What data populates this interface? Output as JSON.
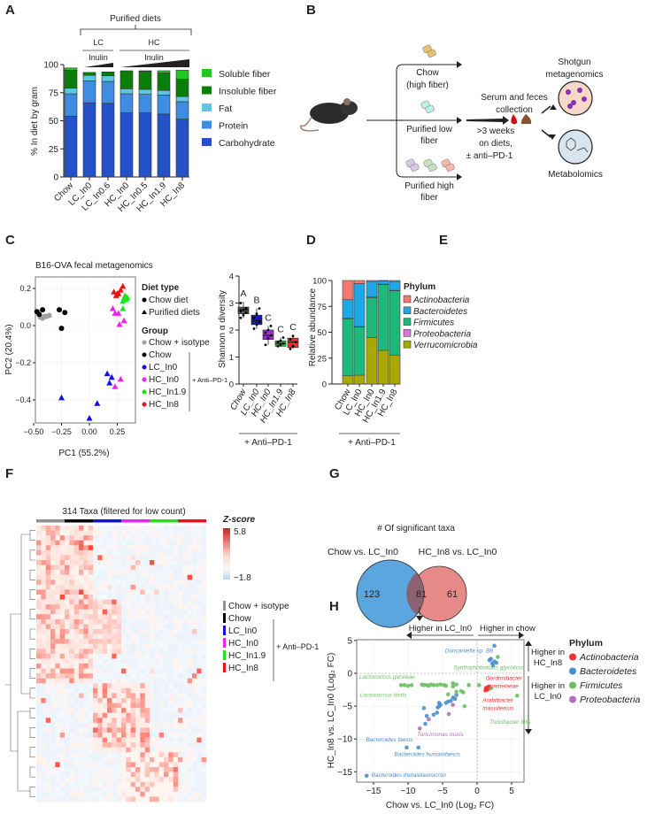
{
  "panels": {
    "A": "A",
    "B": "B",
    "C": "C",
    "D": "D",
    "E": "E",
    "F": "F",
    "G": "G",
    "H": "H"
  },
  "colors": {
    "carb": "#2450c8",
    "protein": "#3f8ce0",
    "fat": "#5fc8e0",
    "insoluble": "#0a7d0a",
    "soluble": "#1ec81e"
  },
  "chart_data": [
    {
      "id": "A",
      "type": "bar",
      "stacked": true,
      "categories": [
        "Chow",
        "LC_In0",
        "LC_In0.6",
        "HC_In0",
        "HC_In0.5",
        "HC_In1.9",
        "HC_In8"
      ],
      "series": [
        {
          "name": "Carbohydrate",
          "color": "#2450c8",
          "values": [
            54,
            66,
            65.5,
            57,
            57,
            56,
            51.5
          ]
        },
        {
          "name": "Protein",
          "color": "#3f8ce0",
          "values": [
            20,
            19.5,
            19.5,
            17,
            16.5,
            17,
            15.5
          ]
        },
        {
          "name": "Fat",
          "color": "#5fc8e0",
          "values": [
            5,
            5,
            5,
            4.5,
            4.5,
            4,
            4.5
          ]
        },
        {
          "name": "Insoluble fiber",
          "color": "#0a7d0a",
          "values": [
            16,
            2.5,
            3.5,
            16,
            16,
            15.5,
            15.5
          ]
        },
        {
          "name": "Soluble fiber",
          "color": "#1ec81e",
          "values": [
            2,
            0,
            0,
            0,
            0.5,
            2,
            8
          ]
        }
      ],
      "legend_order": [
        "Soluble fiber",
        "Insoluble fiber",
        "Fat",
        "Protein",
        "Carbohydrate"
      ],
      "ylabel": "% In diet by gram",
      "ylim": [
        0,
        100
      ],
      "yticks": [
        "0",
        "25",
        "50",
        "75",
        "100"
      ],
      "header": {
        "title": "Purified diets",
        "lc": "LC",
        "hc": "HC",
        "inulin": "Inulin"
      }
    },
    {
      "id": "C",
      "type": "scatter",
      "title": "B16-OVA fecal metagenomics",
      "xlabel": "PC1 (55.2%)",
      "ylabel": "PC2 (20.4%)",
      "xticks": [
        -0.5,
        -0.25,
        0,
        0.25
      ],
      "xtick_labels": [
        "−0.50",
        "−0.25",
        "0.00",
        "0.25"
      ],
      "yticks": [
        0.2,
        0,
        -0.2,
        -0.4
      ],
      "ytick_labels": [
        "0.2",
        "0.0",
        "−0.2",
        "−0.4"
      ],
      "xlim": [
        -0.5,
        0.4
      ],
      "ylim": [
        -0.52,
        0.24
      ],
      "legend": {
        "diet_title": "Diet type",
        "diet_items": [
          "Chow diet",
          "Purified diets"
        ],
        "group_title": "Group",
        "anti": "+ Anti–PD-1"
      },
      "series": [
        {
          "name": "Chow + isotype",
          "color": "#a0a0a0",
          "marker": "circle",
          "points": [
            [
              -0.44,
              0.045
            ],
            [
              -0.42,
              0.04
            ],
            [
              -0.4,
              0.05
            ],
            [
              -0.38,
              0.05
            ],
            [
              -0.36,
              0.055
            ],
            [
              -0.41,
              0.045
            ]
          ]
        },
        {
          "name": "Chow",
          "color": "#000000",
          "marker": "circle",
          "points": [
            [
              -0.47,
              0.075
            ],
            [
              -0.45,
              0.06
            ],
            [
              -0.42,
              0.085
            ],
            [
              -0.27,
              0.085
            ],
            [
              -0.22,
              0.07
            ],
            [
              -0.25,
              -0.015
            ]
          ]
        },
        {
          "name": "LC_In0",
          "color": "#1010e0",
          "marker": "triangle",
          "points": [
            [
              0.16,
              -0.26
            ],
            [
              0.2,
              -0.28
            ],
            [
              0.18,
              -0.31
            ],
            [
              -0.25,
              -0.39
            ],
            [
              0.07,
              -0.42
            ],
            [
              0.0,
              -0.5
            ]
          ]
        },
        {
          "name": "HC_In0",
          "color": "#f020f0",
          "marker": "triangle",
          "points": [
            [
              0.21,
              0.09
            ],
            [
              0.23,
              0.065
            ],
            [
              0.26,
              0.065
            ],
            [
              0.31,
              0.025
            ],
            [
              0.27,
              0.005
            ],
            [
              0.28,
              -0.29
            ],
            [
              0.23,
              -0.33
            ]
          ]
        },
        {
          "name": "HC_In1.9",
          "color": "#20e020",
          "marker": "triangle",
          "points": [
            [
              0.3,
              0.13
            ],
            [
              0.32,
              0.16
            ],
            [
              0.34,
              0.15
            ],
            [
              0.31,
              0.145
            ],
            [
              0.3,
              0.09
            ],
            [
              0.33,
              0.14
            ]
          ]
        },
        {
          "name": "HC_In8",
          "color": "#f01010",
          "marker": "triangle",
          "points": [
            [
              0.22,
              0.18
            ],
            [
              0.24,
              0.16
            ],
            [
              0.25,
              0.17
            ],
            [
              0.28,
              0.19
            ],
            [
              0.3,
              0.21
            ],
            [
              0.26,
              0.17
            ]
          ]
        }
      ]
    },
    {
      "id": "D",
      "type": "box",
      "ylabel": "Shannon α diversity",
      "ylim": [
        0,
        4
      ],
      "yticks": [
        "0",
        "1",
        "2",
        "3",
        "4"
      ],
      "categories": [
        "Chow",
        "LC_In0",
        "HC_In0",
        "HC_In1.9",
        "HC_In8"
      ],
      "colors": [
        "#555555",
        "#1a1aa8",
        "#9b30d0",
        "#3cb34a",
        "#e53030"
      ],
      "letters": [
        "A",
        "B",
        "C",
        "C",
        "C"
      ],
      "boxes": [
        {
          "min": 2.45,
          "q1": 2.6,
          "median": 2.75,
          "q3": 2.85,
          "max": 3.05,
          "points": [
            2.45,
            2.55,
            2.65,
            2.7,
            2.75,
            2.8,
            3.0
          ]
        },
        {
          "min": 2.05,
          "q1": 2.2,
          "median": 2.35,
          "q3": 2.55,
          "max": 2.8,
          "points": [
            2.05,
            2.2,
            2.3,
            2.45,
            2.6,
            2.8
          ]
        },
        {
          "min": 1.45,
          "q1": 1.65,
          "median": 1.8,
          "q3": 2.0,
          "max": 2.15,
          "points": [
            1.45,
            1.7,
            1.8,
            1.9,
            2.0,
            2.15
          ]
        },
        {
          "min": 1.38,
          "q1": 1.4,
          "median": 1.5,
          "q3": 1.6,
          "max": 1.72,
          "points": [
            1.4,
            1.45,
            1.5,
            1.55,
            1.6,
            1.72
          ]
        },
        {
          "min": 1.3,
          "q1": 1.35,
          "median": 1.55,
          "q3": 1.7,
          "max": 1.8,
          "points": [
            1.3,
            1.4,
            1.55,
            1.65,
            1.78
          ]
        }
      ],
      "group_label": "+ Anti–PD-1"
    },
    {
      "id": "E",
      "type": "bar",
      "stacked": true,
      "ylabel": "Relative abundance",
      "ylim": [
        0,
        100
      ],
      "yticks": [
        "0",
        "25",
        "50",
        "75",
        "100"
      ],
      "categories": [
        "Chow",
        "LC_In0",
        "HC_In0",
        "HC_In1.9",
        "HC_In8"
      ],
      "legend_title": "Phylum",
      "series": [
        {
          "name": "Verrucomicrobia",
          "color": "#a8a800",
          "values": [
            8,
            8.5,
            45,
            32.5,
            28
          ]
        },
        {
          "name": "Firmicutes",
          "color": "#1db87a",
          "values": [
            55,
            46.5,
            38.5,
            63.5,
            62
          ]
        },
        {
          "name": "Proteobacteria",
          "color": "#e070e0",
          "values": [
            0.5,
            0.5,
            0.5,
            0.5,
            0.5
          ]
        },
        {
          "name": "Bacteroidetes",
          "color": "#1ea8e8",
          "values": [
            18,
            41.5,
            15,
            3,
            8.5
          ]
        },
        {
          "name": "Actinobacteria",
          "color": "#f07a70",
          "values": [
            18.5,
            3,
            1,
            0.5,
            1
          ]
        }
      ],
      "legend_order": [
        "Actinobacteria",
        "Bacteroidetes",
        "Firmicutes",
        "Proteobacteria",
        "Verrucomicrobia"
      ],
      "group_label": "+ Anti–PD-1"
    },
    {
      "id": "F",
      "type": "heatmap",
      "title": "314 Taxa (filtered for low count)",
      "colorbar": {
        "title": "Z-score",
        "max": "5.8",
        "min": "−1.8"
      },
      "groups": [
        {
          "name": "Chow + isotype",
          "color": "#909090"
        },
        {
          "name": "Chow",
          "color": "#000000"
        },
        {
          "name": "LC_In0",
          "color": "#1010e0"
        },
        {
          "name": "HC_In0",
          "color": "#f020f0"
        },
        {
          "name": "HC_In1.9",
          "color": "#20e020"
        },
        {
          "name": "HC_In8",
          "color": "#f01010"
        }
      ],
      "anti": "+ Anti–PD-1"
    },
    {
      "id": "G",
      "type": "venn",
      "title": "# Of significant taxa",
      "sets": [
        {
          "name": "Chow vs. LC_In0",
          "only": "123",
          "color": "#5ba6de"
        },
        {
          "name": "HC_In8 vs. LC_In0",
          "only": "61",
          "color": "#e58a88"
        }
      ],
      "intersection": "81"
    },
    {
      "id": "H",
      "type": "scatter",
      "xlabel": "Chow vs. LC_In0 (Log₂ FC)",
      "ylabel": "HC_In8 vs. LC_In0 (Log₂ FC)",
      "xticks": [
        -15,
        -10,
        -5,
        0,
        5
      ],
      "xtick_labels": [
        "−15",
        "−10",
        "−5",
        "0",
        "5"
      ],
      "yticks": [
        5,
        0,
        -5,
        -10,
        -15
      ],
      "ytick_labels": [
        "5",
        "0",
        "−5",
        "−10",
        "−15"
      ],
      "xlim": [
        -17,
        7
      ],
      "ylim": [
        -17,
        5
      ],
      "arrows": {
        "left": "Higher in LC_In0",
        "right": "Higher in chow",
        "up": [
          "Higher in",
          "HC_In8"
        ],
        "down": [
          "Higher in",
          "LC_In0"
        ]
      },
      "legend_title": "Phylum",
      "series": [
        {
          "name": "Actinobacteria",
          "color": "#f03030",
          "points": [
            [
              1.3,
              -2.2
            ],
            [
              1.5,
              -2.5
            ],
            [
              1.7,
              -2.0
            ],
            [
              1.4,
              -2.4
            ],
            [
              1.6,
              -2.3
            ],
            [
              1.2,
              -2.6
            ]
          ]
        },
        {
          "name": "Bacteroidetes",
          "color": "#4a8ed0",
          "points": [
            [
              2.5,
              4.2
            ],
            [
              1.8,
              2.0
            ],
            [
              2.2,
              1.5
            ],
            [
              2.5,
              1.8
            ],
            [
              2.0,
              2.2
            ],
            [
              2.8,
              1.6
            ],
            [
              2.3,
              1.2
            ],
            [
              -16,
              -15.6
            ],
            [
              -10.2,
              -11.3
            ],
            [
              -8.5,
              -11.3
            ],
            [
              -7.5,
              -7.7
            ],
            [
              -7.3,
              -6.5
            ],
            [
              -7.7,
              -5.3
            ],
            [
              -6.3,
              -6.3
            ],
            [
              -5.8,
              -6.0
            ],
            [
              -5.5,
              -5.0
            ],
            [
              -5.5,
              -4.5
            ],
            [
              -5.3,
              -4.8
            ],
            [
              -4.5,
              -4.5
            ],
            [
              -4.2,
              -4.3
            ],
            [
              -3.5,
              -3.7
            ],
            [
              -3.0,
              -3.3
            ],
            [
              -3.2,
              -3.9
            ],
            [
              -3.8,
              -4.2
            ],
            [
              -5.7,
              -5.2
            ]
          ]
        },
        {
          "name": "Firmicutes",
          "color": "#6cc060",
          "points": [
            [
              -11,
              -1.8
            ],
            [
              -10.5,
              -1.8
            ],
            [
              -10,
              -1.9
            ],
            [
              -9.5,
              -1.8
            ],
            [
              -8,
              -1.7
            ],
            [
              -7.7,
              -1.8
            ],
            [
              -7.3,
              -1.8
            ],
            [
              -7,
              -1.9
            ],
            [
              -6.7,
              -1.7
            ],
            [
              -6.3,
              -1.8
            ],
            [
              -5.8,
              -1.8
            ],
            [
              -5.3,
              -1.7
            ],
            [
              -4.8,
              -1.8
            ],
            [
              -4.5,
              -1.9
            ],
            [
              -3.5,
              -1.5
            ],
            [
              -3,
              -1.7
            ],
            [
              -1.2,
              -1.8
            ],
            [
              -4.2,
              -3.2
            ],
            [
              -3,
              -2.8
            ],
            [
              -2.3,
              -2.7
            ],
            [
              -2.0,
              -2.9
            ],
            [
              -1.8,
              -5.0
            ],
            [
              -3.5,
              -2.0
            ],
            [
              0.3,
              -1.8
            ],
            [
              3.0,
              2.5
            ],
            [
              5.8,
              -3.4
            ],
            [
              2.0,
              -2.3
            ]
          ]
        },
        {
          "name": "Proteobacteria",
          "color": "#b070c0",
          "points": [
            [
              -8.3,
              -8.4
            ],
            [
              -7,
              -7
            ],
            [
              -4.1,
              -6.2
            ],
            [
              -3.5,
              -4.8
            ]
          ]
        }
      ],
      "annotations": [
        {
          "text": "Duncaniella sp. B8",
          "color": "#4a8ed0",
          "x": 2.3,
          "y": 3.2,
          "anchor": "end"
        },
        {
          "text": "Syntrophobotulus glycolicus",
          "color": "#6cc060",
          "x": 6.9,
          "y": 0.6,
          "anchor": "end"
        },
        {
          "text": "Lactococcus garvieae",
          "color": "#6cc060",
          "x": -9,
          "y": -0.8,
          "anchor": "end"
        },
        {
          "text": "Lactococcus lactis",
          "color": "#6cc060",
          "x": -10.2,
          "y": -3.6,
          "anchor": "end"
        },
        {
          "text": "Gordonibacter",
          "color": "#f03030",
          "x": 6.5,
          "y": -1.0,
          "anchor": "end"
        },
        {
          "text": "pamelaeae",
          "color": "#f03030",
          "x": 6.0,
          "y": -2.2,
          "anchor": "end"
        },
        {
          "text": "Arabiibacter",
          "color": "#f03030",
          "x": 0.8,
          "y": -4.4,
          "anchor": "start"
        },
        {
          "text": "massiliensis",
          "color": "#f03030",
          "x": 0.8,
          "y": -5.6,
          "anchor": "start"
        },
        {
          "text": "Turicibacter bilis",
          "color": "#6cc060",
          "x": 1.8,
          "y": -7.7,
          "anchor": "start"
        },
        {
          "text": "Turicimonas muris",
          "color": "#b070c0",
          "x": -8.7,
          "y": -9.6,
          "anchor": "start"
        },
        {
          "text": "Bacteroides faecis",
          "color": "#4a8ed0",
          "x": -9.3,
          "y": -10.4,
          "anchor": "end"
        },
        {
          "text": "Bacteroides humanifaecis",
          "color": "#4a8ed0",
          "x": -12.0,
          "y": -12.6,
          "anchor": "start"
        },
        {
          "text": "Bacteroides thetaiotaomicron",
          "color": "#4a8ed0",
          "x": -15.3,
          "y": -15.8,
          "anchor": "start"
        }
      ]
    }
  ],
  "diagram_B": {
    "chow": [
      "Chow",
      "(high fiber)"
    ],
    "low": [
      "Purified low",
      "fiber"
    ],
    "high": [
      "Purified high",
      "fiber"
    ],
    "collection": [
      "Serum and feces",
      "collection"
    ],
    "duration": [
      ">3 weeks",
      "on diets,",
      "± anti–PD-1"
    ],
    "shotgun": [
      "Shotgun",
      "metagenomics"
    ],
    "metabolomics": "Metabolomics"
  }
}
